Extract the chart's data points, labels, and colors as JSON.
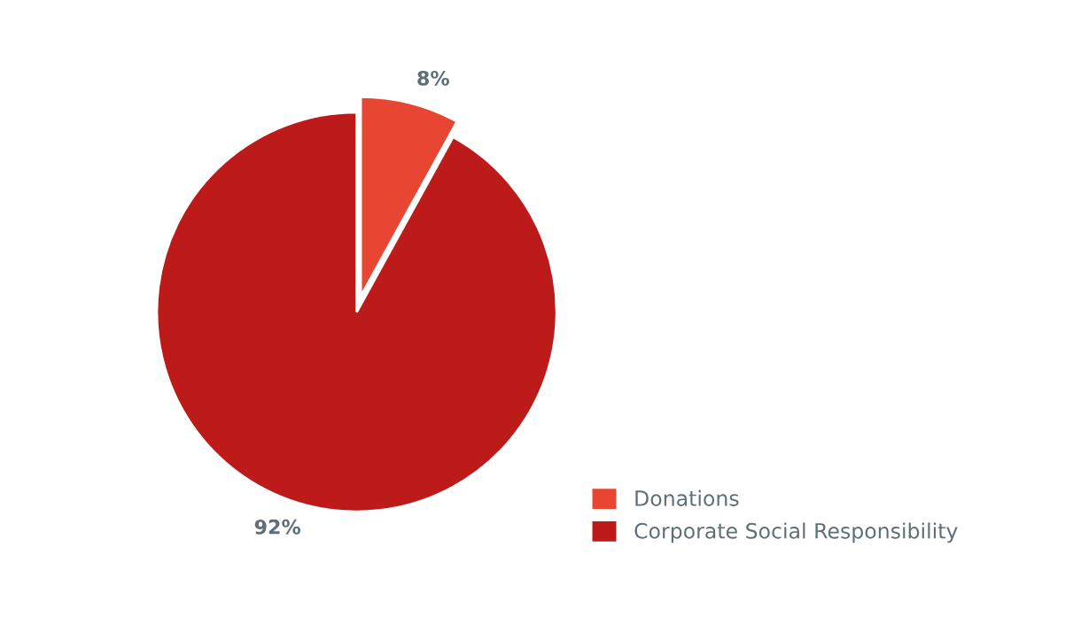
{
  "chart_data": {
    "type": "pie",
    "categories": [
      "Donations",
      "Corporate Social Responsibility"
    ],
    "values": [
      8,
      92
    ],
    "colors": [
      "#e84533",
      "#bd1a1a"
    ],
    "value_labels": [
      "8%",
      "92%"
    ],
    "legend": "bottom right"
  }
}
